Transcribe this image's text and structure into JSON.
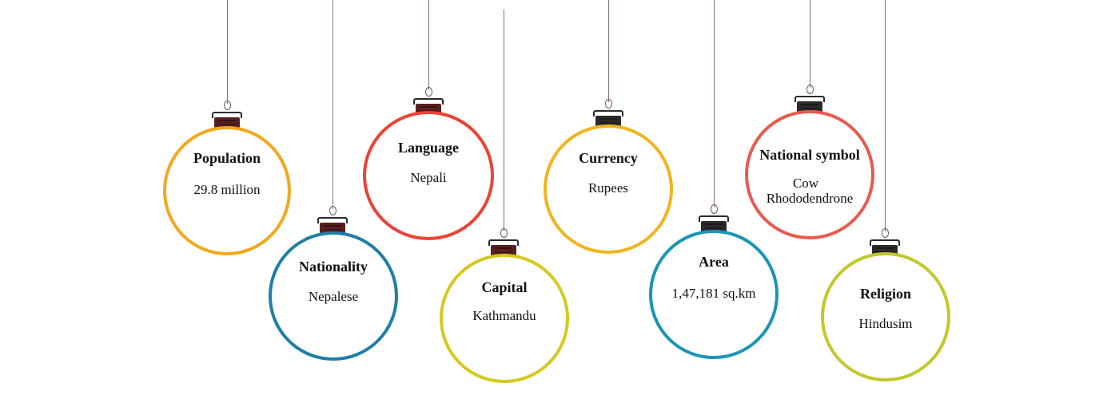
{
  "ornaments": [
    {
      "title": "Population",
      "value": "29.8 million",
      "ring_color": "#f2a81d",
      "clip_color": "#5a1f1f"
    },
    {
      "title": "Nationality",
      "value": "Nepalese",
      "ring_color": "#1e7fa6",
      "clip_color": "#5a1f1f"
    },
    {
      "title": "Language",
      "value": "Nepali",
      "ring_color": "#ea4335",
      "clip_color": "#5a1f1f"
    },
    {
      "title": "Capital",
      "value": "Kathmandu",
      "ring_color": "#d6c91e",
      "clip_color": "#5a1f1f"
    },
    {
      "title": "Currency",
      "value": "Rupees",
      "ring_color": "#f2b31d",
      "clip_color": "#2a2a2a"
    },
    {
      "title": "Area",
      "value": "1,47,181 sq.km",
      "ring_color": "#1a95b5",
      "clip_color": "#2a2a2a"
    },
    {
      "title": "National symbol",
      "value_line1": "Cow",
      "value_line2": "Rhododendrone",
      "ring_color": "#e85a4f",
      "clip_color": "#2a2a2a"
    },
    {
      "title": "Religion",
      "value": "Hindusim",
      "ring_color": "#c2c82a",
      "clip_color": "#2a2a2a"
    }
  ]
}
